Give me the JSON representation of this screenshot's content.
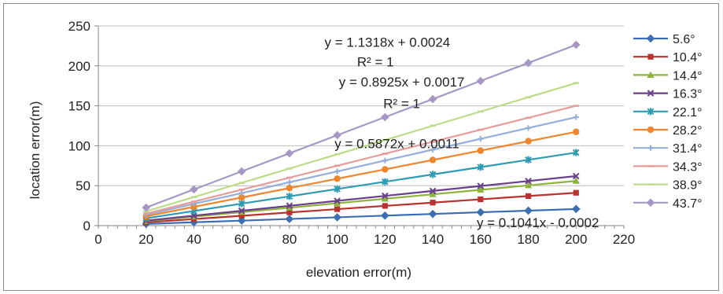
{
  "chart_data": {
    "type": "scatter",
    "xlabel": "elevation error(m)",
    "ylabel": "location error(m)",
    "xlim": [
      0,
      220
    ],
    "ylim": [
      0,
      250
    ],
    "xticks": [
      "0",
      "20",
      "40",
      "60",
      "80",
      "100",
      "120",
      "140",
      "160",
      "180",
      "200",
      "220"
    ],
    "yticks": [
      "0",
      "50",
      "100",
      "150",
      "200",
      "250"
    ],
    "grid": "horizontal",
    "legend_position": "right",
    "x": [
      20,
      40,
      60,
      80,
      100,
      120,
      140,
      160,
      180,
      200
    ],
    "trendlines": "linear, one per series",
    "series": [
      {
        "name": "5.6°",
        "color": "#3c6eb4",
        "marker": "diamond",
        "values": [
          2.1,
          4.2,
          6.2,
          8.3,
          10.4,
          12.5,
          14.6,
          16.7,
          18.7,
          20.8
        ]
      },
      {
        "name": "10.4°",
        "color": "#b9322e",
        "marker": "square",
        "values": [
          4.1,
          8.2,
          12.3,
          16.5,
          20.6,
          24.7,
          28.8,
          32.9,
          37.0,
          41.1
        ]
      },
      {
        "name": "14.4°",
        "color": "#8eb43c",
        "marker": "triangle",
        "values": [
          5.6,
          11.2,
          16.8,
          22.4,
          28.0,
          33.6,
          39.2,
          44.8,
          50.4,
          56.0
        ]
      },
      {
        "name": "16.3°",
        "color": "#6a3f8c",
        "marker": "x",
        "values": [
          6.2,
          12.4,
          18.6,
          24.8,
          31.0,
          37.2,
          43.4,
          49.6,
          55.8,
          62.0
        ]
      },
      {
        "name": "22.1°",
        "color": "#2e9bb3",
        "marker": "star",
        "values": [
          9.2,
          18.3,
          27.5,
          36.6,
          45.8,
          54.9,
          64.1,
          73.2,
          82.4,
          91.5
        ]
      },
      {
        "name": "28.2°",
        "color": "#ee8630",
        "marker": "circle",
        "values": [
          11.7,
          23.5,
          35.2,
          47.0,
          58.7,
          70.4,
          82.2,
          93.9,
          105.7,
          117.4
        ]
      },
      {
        "name": "31.4°",
        "color": "#94aedc",
        "marker": "plus",
        "values": [
          13.6,
          27.2,
          40.7,
          54.3,
          67.9,
          81.5,
          95.1,
          108.6,
          122.2,
          135.8
        ]
      },
      {
        "name": "34.3°",
        "color": "#e59c9a",
        "marker": "dash",
        "values": [
          15.0,
          30.0,
          45.0,
          60.0,
          75.0,
          90.0,
          105.0,
          120.0,
          135.0,
          150.0
        ]
      },
      {
        "name": "38.9°",
        "color": "#bedc88",
        "marker": "dash",
        "values": [
          17.9,
          35.7,
          53.6,
          71.4,
          89.3,
          107.1,
          125.0,
          142.8,
          160.7,
          178.5
        ]
      },
      {
        "name": "43.7°",
        "color": "#a697c6",
        "marker": "diamond",
        "values": [
          22.6,
          45.3,
          67.9,
          90.5,
          113.2,
          135.8,
          158.4,
          181.1,
          203.7,
          226.4
        ]
      }
    ],
    "annotations": [
      {
        "text": "y = 1.1318x + 0.0024",
        "x": 121,
        "y": 230
      },
      {
        "text": "R² = 1",
        "x": 116,
        "y": 205
      },
      {
        "text": "y = 0.8925x + 0.0017",
        "x": 127,
        "y": 180
      },
      {
        "text": "R² = 1",
        "x": 127,
        "y": 153
      },
      {
        "text": "y = 0.5872x + 0.0011",
        "x": 125,
        "y": 103
      },
      {
        "text": "y = 0.1041x - 0.0002",
        "x": 184,
        "y": 4
      }
    ]
  }
}
